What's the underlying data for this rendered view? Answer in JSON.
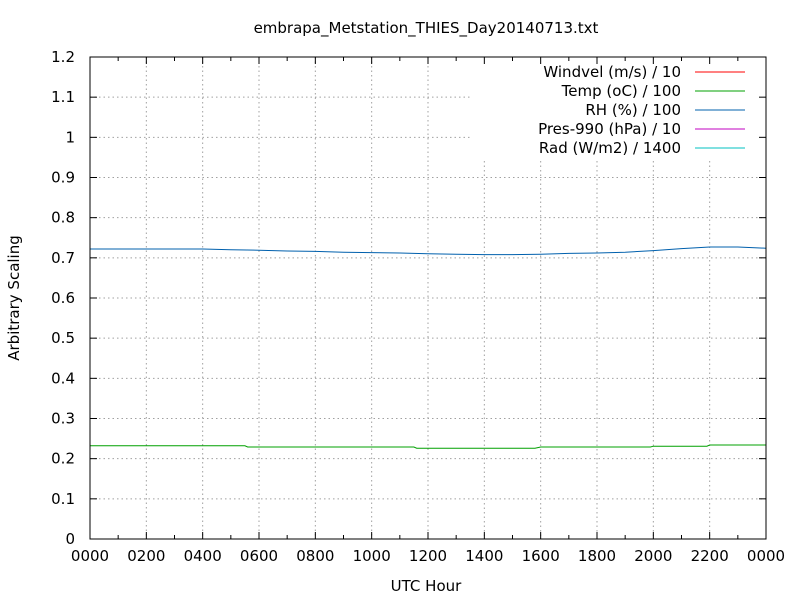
{
  "chart_data": {
    "type": "line",
    "title": "embrapa_Metstation_THIES_Day20140713.txt",
    "xlabel": "UTC Hour",
    "ylabel": "Arbitrary Scaling",
    "xlim": [
      0,
      24
    ],
    "ylim": [
      0,
      1.2
    ],
    "x_ticks": [
      "0000",
      "0200",
      "0400",
      "0600",
      "0800",
      "1000",
      "1200",
      "1400",
      "1600",
      "1800",
      "2000",
      "2200",
      "0000"
    ],
    "y_ticks": [
      "0",
      "0.1",
      "0.2",
      "0.3",
      "0.4",
      "0.5",
      "0.6",
      "0.7",
      "0.8",
      "0.9",
      "1",
      "1.1",
      "1.2"
    ],
    "grid": true,
    "legend_position": "top-right",
    "series": [
      {
        "name": "Windvel (m/s) / 10",
        "color": "#ff0000",
        "x": [],
        "y": []
      },
      {
        "name": "Temp (oC) / 100",
        "color": "#00a000",
        "x": [
          0,
          2,
          4,
          5.5,
          5.6,
          6,
          8,
          10,
          11.5,
          11.6,
          12,
          14,
          15.8,
          16,
          18,
          19.9,
          20,
          21.9,
          22,
          24
        ],
        "y": [
          0.232,
          0.232,
          0.232,
          0.232,
          0.229,
          0.229,
          0.229,
          0.229,
          0.229,
          0.226,
          0.226,
          0.226,
          0.226,
          0.229,
          0.229,
          0.229,
          0.231,
          0.231,
          0.234,
          0.234
        ]
      },
      {
        "name": "RH (%) / 100",
        "color": "#0060ad",
        "x": [
          0,
          2,
          4,
          5,
          6,
          7,
          8,
          9,
          10,
          11,
          12,
          13,
          14,
          15,
          16,
          17,
          18,
          19,
          20,
          21,
          22,
          23,
          24
        ],
        "y": [
          0.722,
          0.722,
          0.722,
          0.72,
          0.719,
          0.717,
          0.716,
          0.714,
          0.713,
          0.712,
          0.71,
          0.709,
          0.708,
          0.708,
          0.709,
          0.711,
          0.712,
          0.714,
          0.718,
          0.723,
          0.727,
          0.727,
          0.724
        ]
      },
      {
        "name": "Pres-990 (hPa) / 10",
        "color": "#c000c0",
        "x": [],
        "y": []
      },
      {
        "name": "Rad (W/m2) / 1400",
        "color": "#00c0c0",
        "x": [],
        "y": []
      }
    ]
  }
}
